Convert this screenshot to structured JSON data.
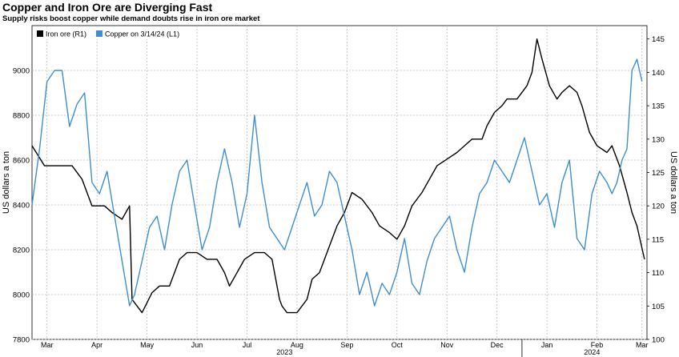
{
  "title": "Copper and Iron Ore are Diverging Fast",
  "subtitle": "Supply risks boost copper while demand doubts rise in iron ore market",
  "chart_data": {
    "type": "line",
    "title": "Copper and Iron Ore are Diverging Fast",
    "subtitle": "Supply risks boost copper while demand doubts rise in iron ore market",
    "ylabel_left": "US dollars a ton",
    "ylabel_right": "US dollars a ton",
    "ylim_left": [
      7800,
      9200
    ],
    "ylim_right": [
      100,
      147
    ],
    "yticks_left": [
      7800,
      8000,
      8200,
      8400,
      8600,
      8800,
      9000
    ],
    "yticks_right": [
      100,
      105,
      110,
      115,
      120,
      125,
      130,
      135,
      140,
      145
    ],
    "x_range": [
      0,
      12.3
    ],
    "month_ticks": [
      {
        "label": "Mar",
        "x": 0.3
      },
      {
        "label": "Apr",
        "x": 1.3
      },
      {
        "label": "May",
        "x": 2.3
      },
      {
        "label": "Jun",
        "x": 3.3
      },
      {
        "label": "Jul",
        "x": 4.3
      },
      {
        "label": "Aug",
        "x": 5.3
      },
      {
        "label": "Sep",
        "x": 6.3
      },
      {
        "label": "Oct",
        "x": 7.3
      },
      {
        "label": "Nov",
        "x": 8.3
      },
      {
        "label": "Dec",
        "x": 9.3
      },
      {
        "label": "Jan",
        "x": 10.3
      },
      {
        "label": "Feb",
        "x": 11.3
      },
      {
        "label": "Mar",
        "x": 12.2
      }
    ],
    "year_labels": [
      {
        "label": "2023",
        "x": 5.05
      },
      {
        "label": "2024",
        "x": 11.2
      }
    ],
    "year_divider_x": 9.8,
    "grid": true,
    "legend_position": "top-left",
    "series": [
      {
        "name": "Iron ore (R1)",
        "axis": "right",
        "color": "#000000",
        "x": [
          0.0,
          0.25,
          0.5,
          0.8,
          1.0,
          1.2,
          1.45,
          1.6,
          1.8,
          1.95,
          2.0,
          2.2,
          2.4,
          2.55,
          2.75,
          2.95,
          3.1,
          3.3,
          3.5,
          3.7,
          3.85,
          3.95,
          4.1,
          4.25,
          4.45,
          4.65,
          4.8,
          4.95,
          5.0,
          5.1,
          5.3,
          5.5,
          5.6,
          5.75,
          5.95,
          6.1,
          6.25,
          6.4,
          6.6,
          6.8,
          6.95,
          7.15,
          7.3,
          7.45,
          7.6,
          7.8,
          7.95,
          8.1,
          8.3,
          8.5,
          8.65,
          8.8,
          9.0,
          9.1,
          9.25,
          9.4,
          9.5,
          9.6,
          9.7,
          9.8,
          9.9,
          10.0,
          10.1,
          10.2,
          10.35,
          10.5,
          10.6,
          10.75,
          10.9,
          11.0,
          11.15,
          11.3,
          11.5,
          11.6,
          11.75,
          11.9,
          12.0,
          12.1,
          12.25
        ],
        "values": [
          129,
          126,
          126,
          126,
          124,
          120,
          120,
          119,
          118,
          120,
          106,
          104,
          107,
          108,
          108,
          112,
          113,
          113,
          112,
          112,
          110,
          108,
          110,
          112,
          113,
          113,
          112,
          106,
          105,
          104,
          104,
          106,
          109,
          110,
          114,
          117,
          119,
          122,
          121,
          119,
          117,
          116,
          115,
          117,
          120,
          122,
          124,
          126,
          127,
          128,
          129,
          130,
          130,
          132,
          134,
          135,
          136,
          136,
          136,
          137,
          138,
          140,
          145,
          142,
          138,
          136,
          137,
          138,
          137,
          135,
          131,
          129,
          128,
          129,
          126,
          122,
          119,
          117,
          112
        ],
        "values_usd_per_ton_note": ""
      },
      {
        "name": "Copper on 3/14/24 (L1)",
        "axis": "left",
        "color": "#3e8ed0",
        "x": [
          0.0,
          0.15,
          0.3,
          0.45,
          0.6,
          0.75,
          0.9,
          1.05,
          1.2,
          1.35,
          1.5,
          1.65,
          1.8,
          1.95,
          2.05,
          2.2,
          2.35,
          2.5,
          2.65,
          2.8,
          2.95,
          3.1,
          3.25,
          3.4,
          3.55,
          3.7,
          3.85,
          4.0,
          4.15,
          4.3,
          4.45,
          4.6,
          4.75,
          4.9,
          5.05,
          5.2,
          5.35,
          5.5,
          5.65,
          5.8,
          5.95,
          6.1,
          6.25,
          6.4,
          6.55,
          6.7,
          6.85,
          7.0,
          7.15,
          7.3,
          7.45,
          7.6,
          7.75,
          7.9,
          8.05,
          8.2,
          8.35,
          8.5,
          8.65,
          8.8,
          8.95,
          9.1,
          9.25,
          9.4,
          9.55,
          9.7,
          9.85,
          10.0,
          10.15,
          10.3,
          10.45,
          10.6,
          10.75,
          10.9,
          11.05,
          11.2,
          11.35,
          11.5,
          11.6,
          11.7,
          11.8,
          11.9,
          12.0,
          12.1,
          12.2
        ],
        "values": [
          8400,
          8650,
          8950,
          9000,
          9000,
          8750,
          8850,
          8900,
          8500,
          8450,
          8550,
          8350,
          8150,
          7950,
          8000,
          8150,
          8300,
          8350,
          8200,
          8400,
          8550,
          8600,
          8400,
          8200,
          8300,
          8500,
          8650,
          8500,
          8300,
          8450,
          8800,
          8500,
          8300,
          8250,
          8200,
          8300,
          8400,
          8500,
          8350,
          8400,
          8550,
          8500,
          8350,
          8200,
          8000,
          8100,
          7950,
          8050,
          8000,
          8100,
          8250,
          8050,
          8000,
          8150,
          8250,
          8300,
          8350,
          8200,
          8100,
          8300,
          8450,
          8500,
          8600,
          8550,
          8500,
          8600,
          8700,
          8550,
          8400,
          8450,
          8300,
          8500,
          8600,
          8250,
          8200,
          8450,
          8550,
          8500,
          8450,
          8500,
          8600,
          8650,
          9000,
          9050,
          8950
        ]
      }
    ]
  }
}
